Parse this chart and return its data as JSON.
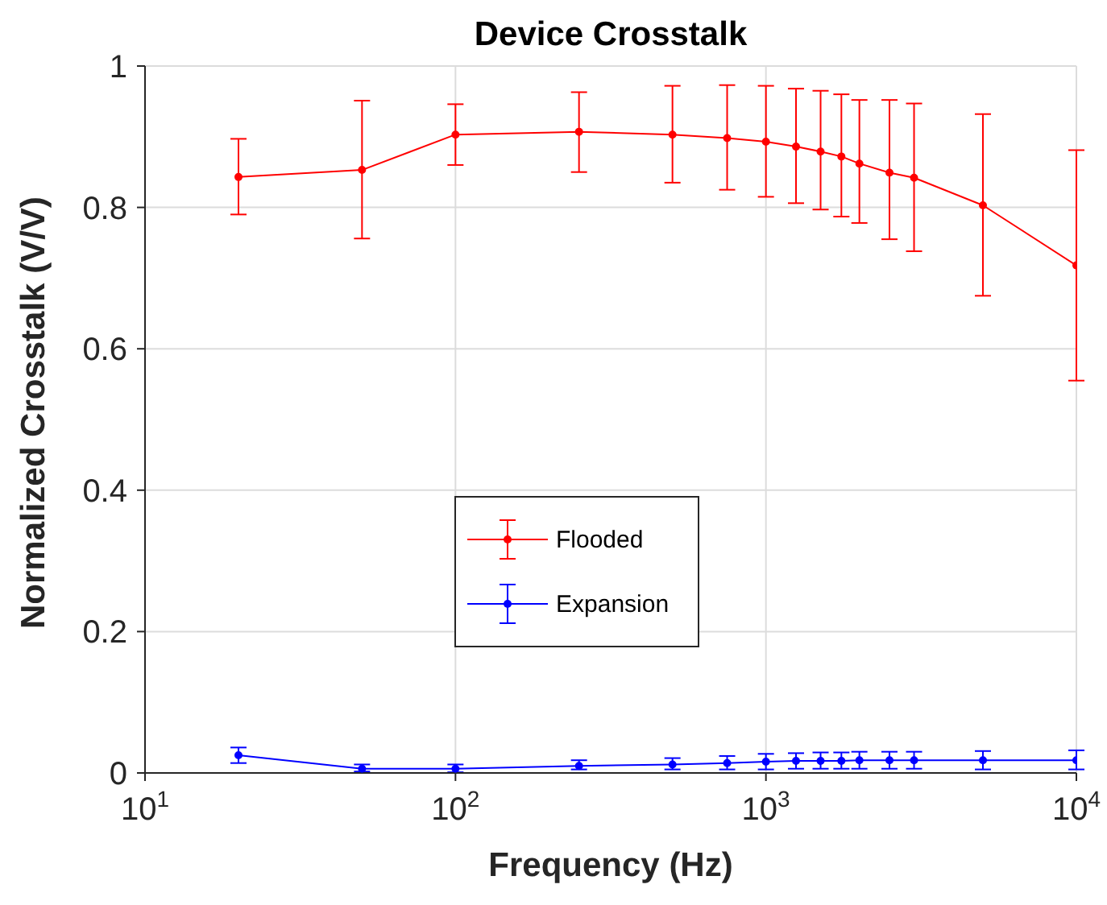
{
  "chart_data": {
    "type": "line",
    "title": "Device Crosstalk",
    "xlabel": "Frequency (Hz)",
    "ylabel": "Normalized Crosstalk (V/V)",
    "x": [
      20,
      50,
      100,
      250,
      500,
      750,
      1000,
      1250,
      1500,
      1750,
      2000,
      2500,
      3000,
      5000,
      10000
    ],
    "series": [
      {
        "name": "Flooded",
        "color": "#ff0000",
        "values": [
          0.843,
          0.853,
          0.903,
          0.907,
          0.903,
          0.898,
          0.893,
          0.886,
          0.879,
          0.872,
          0.862,
          0.849,
          0.842,
          0.803,
          0.718
        ],
        "errors": [
          [
            0.79,
            0.897
          ],
          [
            0.756,
            0.951
          ],
          [
            0.86,
            0.946
          ],
          [
            0.85,
            0.963
          ],
          [
            0.835,
            0.972
          ],
          [
            0.825,
            0.973
          ],
          [
            0.815,
            0.972
          ],
          [
            0.806,
            0.968
          ],
          [
            0.797,
            0.965
          ],
          [
            0.787,
            0.96
          ],
          [
            0.778,
            0.952
          ],
          [
            0.755,
            0.952
          ],
          [
            0.738,
            0.947
          ],
          [
            0.675,
            0.932
          ],
          [
            0.555,
            0.881
          ]
        ]
      },
      {
        "name": "Expansion",
        "color": "#0000ff",
        "values": [
          0.025,
          0.006,
          0.006,
          0.01,
          0.012,
          0.014,
          0.016,
          0.017,
          0.017,
          0.017,
          0.018,
          0.018,
          0.018,
          0.018,
          0.018
        ],
        "errors": [
          [
            0.014,
            0.036
          ],
          [
            0.002,
            0.012
          ],
          [
            0.001,
            0.012
          ],
          [
            0.005,
            0.018
          ],
          [
            0.005,
            0.021
          ],
          [
            0.005,
            0.024
          ],
          [
            0.005,
            0.027
          ],
          [
            0.006,
            0.028
          ],
          [
            0.006,
            0.029
          ],
          [
            0.006,
            0.029
          ],
          [
            0.006,
            0.03
          ],
          [
            0.006,
            0.03
          ],
          [
            0.006,
            0.03
          ],
          [
            0.005,
            0.031
          ],
          [
            0.005,
            0.032
          ]
        ]
      }
    ],
    "log": "x",
    "xlim": [
      10,
      10000
    ],
    "xticks": [
      {
        "value": 10,
        "label": "10$^{1}$"
      },
      {
        "value": 100,
        "label": "10$^{2}$"
      },
      {
        "value": 1000,
        "label": "10$^{3}$"
      },
      {
        "value": 10000,
        "label": "10$^{4}$"
      }
    ],
    "ylim": [
      0,
      1
    ],
    "yticks": [
      0,
      0.2,
      0.4,
      0.6,
      0.8,
      1
    ],
    "grid": true,
    "legend": "center",
    "marker": "circle",
    "line_style": "solid"
  }
}
